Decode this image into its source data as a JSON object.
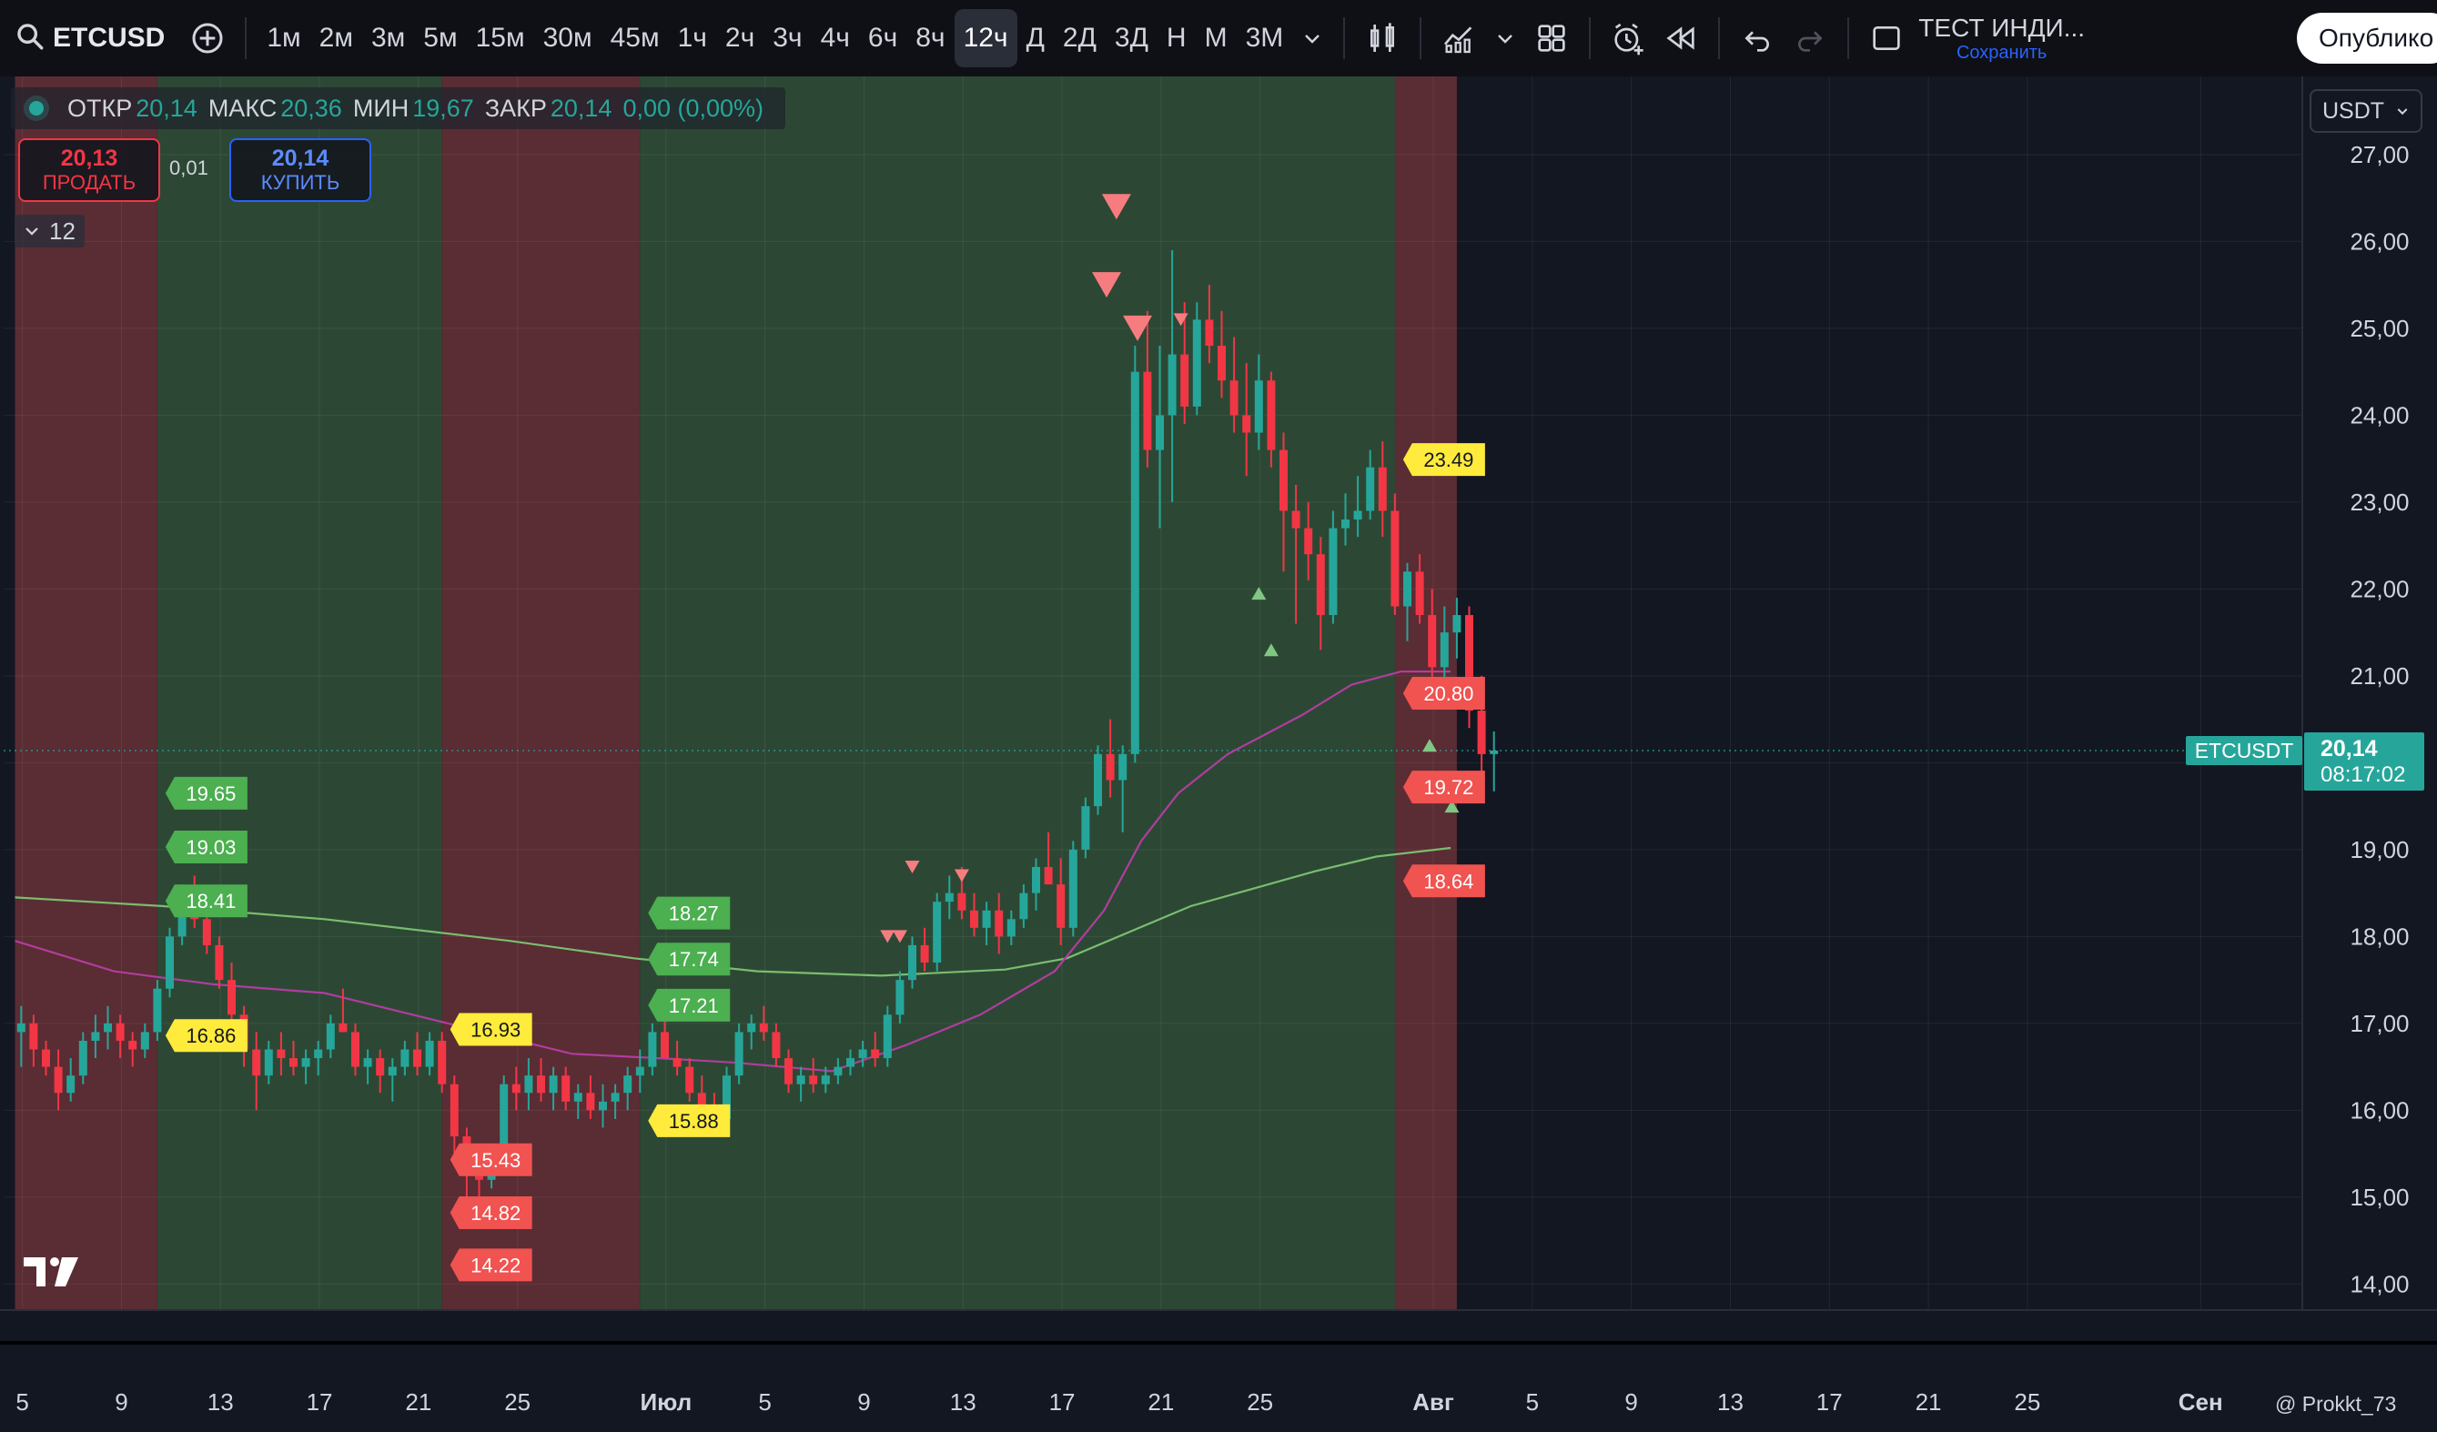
{
  "toolbar": {
    "symbol": "ETCUSD",
    "intervals": [
      "1м",
      "2м",
      "3м",
      "5м",
      "15м",
      "30м",
      "45м",
      "1ч",
      "2ч",
      "3ч",
      "4ч",
      "6ч",
      "8ч",
      "12ч",
      "Д",
      "2Д",
      "3Д",
      "Н",
      "М",
      "3М"
    ],
    "active_interval": "12ч",
    "layout_name": "ТЕСТ ИНДИ...",
    "save_label": "Сохранить",
    "publish_label": "Опублико"
  },
  "legend": {
    "open_label": "ОТКР",
    "open_value": "20,14",
    "high_label": "МАКС",
    "high_value": "20,36",
    "low_label": "МИН",
    "low_value": "19,67",
    "close_label": "ЗАКР",
    "close_value": "20,14",
    "change_value": "0,00 (0,00%)"
  },
  "trade": {
    "sell_price": "20,13",
    "sell_label": "ПРОДАТЬ",
    "spread": "0,01",
    "buy_price": "20,14",
    "buy_label": "КУПИТЬ"
  },
  "indicators_count": "12",
  "currency": "USDT",
  "attribution": "@ Prokkt_73",
  "colors": {
    "background": "#131722",
    "up": "#26a69a",
    "down": "#f23645",
    "zone_green": "#2c4834",
    "zone_red": "#5a2c33",
    "ma_long": "#7bbd6f",
    "ma_short": "#b03d9f",
    "label_green": "#4caf50",
    "label_red": "#f05350",
    "label_yellow": "#ffeb3b"
  },
  "chart_data": {
    "type": "candlestick",
    "symbol": "ETCUSDT",
    "last_price": "20,14",
    "countdown": "08:17:02",
    "ylim": [
      13.7,
      27.9
    ],
    "y_ticks": [
      "14,00",
      "15,00",
      "16,00",
      "17,00",
      "18,00",
      "19,00",
      "20,00",
      "21,00",
      "22,00",
      "23,00",
      "24,00",
      "25,00",
      "26,00",
      "27,00"
    ],
    "x_ticks": [
      {
        "label": "5",
        "t": 0.6
      },
      {
        "label": "9",
        "t": 8.6
      },
      {
        "label": "13",
        "t": 16.6
      },
      {
        "label": "17",
        "t": 24.6
      },
      {
        "label": "21",
        "t": 32.6
      },
      {
        "label": "25",
        "t": 40.6
      },
      {
        "label": "Июл",
        "t": 52.6
      },
      {
        "label": "5",
        "t": 60.6
      },
      {
        "label": "9",
        "t": 68.6
      },
      {
        "label": "13",
        "t": 76.6
      },
      {
        "label": "17",
        "t": 84.6
      },
      {
        "label": "21",
        "t": 92.6
      },
      {
        "label": "25",
        "t": 100.6
      },
      {
        "label": "Авг",
        "t": 114.6
      },
      {
        "label": "5",
        "t": 122.6
      },
      {
        "label": "9",
        "t": 130.6
      },
      {
        "label": "13",
        "t": 138.6
      },
      {
        "label": "17",
        "t": 146.6
      },
      {
        "label": "21",
        "t": 154.6
      },
      {
        "label": "25",
        "t": 162.6
      },
      {
        "label": "Сен",
        "t": 176.6
      }
    ],
    "zones": [
      {
        "from": 0,
        "to": 11.5,
        "color": "red"
      },
      {
        "from": 11.5,
        "to": 34.5,
        "color": "green"
      },
      {
        "from": 34.5,
        "to": 50.5,
        "color": "red"
      },
      {
        "from": 50.5,
        "to": 111.5,
        "color": "green"
      },
      {
        "from": 111.5,
        "to": 116.5,
        "color": "red"
      }
    ],
    "candles": [
      [
        16.9,
        17.2,
        16.5,
        17.0
      ],
      [
        17.0,
        17.1,
        16.5,
        16.7
      ],
      [
        16.7,
        16.8,
        16.4,
        16.5
      ],
      [
        16.5,
        16.7,
        16.0,
        16.2
      ],
      [
        16.2,
        16.6,
        16.1,
        16.4
      ],
      [
        16.4,
        16.9,
        16.3,
        16.8
      ],
      [
        16.8,
        17.1,
        16.6,
        16.9
      ],
      [
        16.9,
        17.2,
        16.7,
        17.0
      ],
      [
        17.0,
        17.1,
        16.6,
        16.8
      ],
      [
        16.8,
        16.9,
        16.5,
        16.7
      ],
      [
        16.7,
        17.0,
        16.6,
        16.9
      ],
      [
        16.9,
        17.5,
        16.8,
        17.4
      ],
      [
        17.4,
        18.1,
        17.3,
        18.0
      ],
      [
        18.0,
        18.6,
        17.9,
        18.4
      ],
      [
        18.4,
        18.7,
        18.1,
        18.2
      ],
      [
        18.2,
        18.5,
        17.8,
        17.9
      ],
      [
        17.9,
        18.0,
        17.4,
        17.5
      ],
      [
        17.5,
        17.7,
        16.9,
        17.1
      ],
      [
        17.1,
        17.2,
        16.5,
        16.7
      ],
      [
        16.7,
        16.9,
        16.0,
        16.4
      ],
      [
        16.4,
        16.8,
        16.3,
        16.7
      ],
      [
        16.7,
        16.9,
        16.4,
        16.6
      ],
      [
        16.6,
        16.8,
        16.4,
        16.5
      ],
      [
        16.5,
        16.7,
        16.3,
        16.6
      ],
      [
        16.6,
        16.8,
        16.4,
        16.7
      ],
      [
        16.7,
        17.1,
        16.6,
        17.0
      ],
      [
        17.0,
        17.4,
        16.9,
        16.9
      ],
      [
        16.9,
        17.0,
        16.4,
        16.5
      ],
      [
        16.5,
        16.7,
        16.3,
        16.6
      ],
      [
        16.6,
        16.7,
        16.2,
        16.4
      ],
      [
        16.4,
        16.6,
        16.1,
        16.5
      ],
      [
        16.5,
        16.8,
        16.4,
        16.7
      ],
      [
        16.7,
        16.9,
        16.4,
        16.5
      ],
      [
        16.5,
        16.9,
        16.4,
        16.8
      ],
      [
        16.8,
        16.9,
        16.2,
        16.3
      ],
      [
        16.3,
        16.4,
        15.4,
        15.7
      ],
      [
        15.7,
        15.8,
        15.0,
        15.3
      ],
      [
        15.3,
        15.5,
        14.9,
        15.2
      ],
      [
        15.2,
        15.6,
        15.1,
        15.5
      ],
      [
        15.5,
        16.4,
        15.4,
        16.3
      ],
      [
        16.3,
        16.5,
        16.0,
        16.2
      ],
      [
        16.2,
        16.6,
        16.0,
        16.4
      ],
      [
        16.4,
        16.6,
        16.1,
        16.2
      ],
      [
        16.2,
        16.5,
        16.0,
        16.4
      ],
      [
        16.4,
        16.5,
        16.0,
        16.1
      ],
      [
        16.1,
        16.3,
        15.9,
        16.2
      ],
      [
        16.2,
        16.4,
        15.9,
        16.0
      ],
      [
        16.0,
        16.3,
        15.8,
        16.1
      ],
      [
        16.1,
        16.3,
        15.9,
        16.2
      ],
      [
        16.2,
        16.5,
        16.0,
        16.4
      ],
      [
        16.4,
        16.7,
        16.2,
        16.5
      ],
      [
        16.5,
        17.0,
        16.4,
        16.9
      ],
      [
        16.9,
        17.1,
        16.6,
        16.6
      ],
      [
        16.6,
        16.8,
        16.4,
        16.5
      ],
      [
        16.5,
        16.6,
        16.1,
        16.2
      ],
      [
        16.2,
        16.4,
        15.9,
        16.0
      ],
      [
        16.0,
        16.2,
        15.8,
        15.9
      ],
      [
        15.9,
        16.5,
        15.8,
        16.4
      ],
      [
        16.4,
        17.0,
        16.3,
        16.9
      ],
      [
        16.9,
        17.1,
        16.7,
        17.0
      ],
      [
        17.0,
        17.2,
        16.8,
        16.9
      ],
      [
        16.9,
        17.0,
        16.5,
        16.6
      ],
      [
        16.6,
        16.7,
        16.2,
        16.3
      ],
      [
        16.3,
        16.5,
        16.1,
        16.4
      ],
      [
        16.4,
        16.6,
        16.2,
        16.3
      ],
      [
        16.3,
        16.5,
        16.2,
        16.4
      ],
      [
        16.4,
        16.6,
        16.3,
        16.5
      ],
      [
        16.5,
        16.7,
        16.4,
        16.6
      ],
      [
        16.6,
        16.8,
        16.5,
        16.7
      ],
      [
        16.7,
        16.9,
        16.5,
        16.6
      ],
      [
        16.6,
        17.2,
        16.5,
        17.1
      ],
      [
        17.1,
        17.6,
        17.0,
        17.5
      ],
      [
        17.5,
        18.0,
        17.4,
        17.9
      ],
      [
        17.9,
        18.1,
        17.6,
        17.7
      ],
      [
        17.7,
        18.5,
        17.6,
        18.4
      ],
      [
        18.4,
        18.7,
        18.2,
        18.5
      ],
      [
        18.5,
        18.8,
        18.2,
        18.3
      ],
      [
        18.3,
        18.5,
        18.0,
        18.1
      ],
      [
        18.1,
        18.4,
        17.9,
        18.3
      ],
      [
        18.3,
        18.5,
        17.8,
        18.0
      ],
      [
        18.0,
        18.3,
        17.9,
        18.2
      ],
      [
        18.2,
        18.6,
        18.1,
        18.5
      ],
      [
        18.5,
        18.9,
        18.3,
        18.8
      ],
      [
        18.8,
        19.2,
        18.6,
        18.6
      ],
      [
        18.6,
        18.9,
        17.9,
        18.1
      ],
      [
        18.1,
        19.1,
        18.0,
        19.0
      ],
      [
        19.0,
        19.6,
        18.9,
        19.5
      ],
      [
        19.5,
        20.2,
        19.4,
        20.1
      ],
      [
        20.1,
        20.5,
        19.6,
        19.8
      ],
      [
        19.8,
        20.2,
        19.2,
        20.1
      ],
      [
        20.1,
        24.8,
        20.0,
        24.5
      ],
      [
        24.5,
        25.2,
        23.4,
        23.6
      ],
      [
        23.6,
        24.8,
        22.7,
        24.0
      ],
      [
        24.0,
        25.9,
        23.0,
        24.7
      ],
      [
        24.7,
        25.3,
        23.9,
        24.1
      ],
      [
        24.1,
        25.3,
        24.0,
        25.1
      ],
      [
        25.1,
        25.5,
        24.6,
        24.8
      ],
      [
        24.8,
        25.2,
        24.2,
        24.4
      ],
      [
        24.4,
        24.9,
        23.8,
        24.0
      ],
      [
        24.0,
        24.6,
        23.3,
        23.8
      ],
      [
        23.8,
        24.7,
        23.6,
        24.4
      ],
      [
        24.4,
        24.5,
        23.4,
        23.6
      ],
      [
        23.6,
        23.8,
        22.2,
        22.9
      ],
      [
        22.9,
        23.2,
        21.6,
        22.7
      ],
      [
        22.7,
        23.0,
        22.1,
        22.4
      ],
      [
        22.4,
        22.6,
        21.3,
        21.7
      ],
      [
        21.7,
        22.9,
        21.6,
        22.7
      ],
      [
        22.7,
        23.1,
        22.5,
        22.8
      ],
      [
        22.8,
        23.3,
        22.6,
        22.9
      ],
      [
        22.9,
        23.6,
        22.8,
        23.4
      ],
      [
        23.4,
        23.7,
        22.6,
        22.9
      ],
      [
        22.9,
        23.1,
        21.7,
        21.8
      ],
      [
        21.8,
        22.3,
        21.4,
        22.2
      ],
      [
        22.2,
        22.4,
        21.6,
        21.7
      ],
      [
        21.7,
        22.0,
        20.8,
        21.1
      ],
      [
        21.1,
        21.8,
        20.7,
        21.5
      ],
      [
        21.5,
        21.9,
        21.2,
        21.7
      ],
      [
        21.7,
        21.8,
        20.4,
        20.6
      ],
      [
        20.6,
        21.0,
        19.9,
        20.1
      ],
      [
        20.1,
        20.36,
        19.67,
        20.14
      ]
    ],
    "ma_long": [
      [
        0,
        18.45
      ],
      [
        12,
        18.35
      ],
      [
        25,
        18.2
      ],
      [
        40,
        17.95
      ],
      [
        50,
        17.75
      ],
      [
        60,
        17.6
      ],
      [
        70,
        17.55
      ],
      [
        80,
        17.62
      ],
      [
        85,
        17.75
      ],
      [
        90,
        18.05
      ],
      [
        95,
        18.35
      ],
      [
        100,
        18.55
      ],
      [
        105,
        18.75
      ],
      [
        110,
        18.92
      ],
      [
        116,
        19.02
      ]
    ],
    "ma_short": [
      [
        0,
        17.95
      ],
      [
        8,
        17.6
      ],
      [
        16,
        17.45
      ],
      [
        25,
        17.35
      ],
      [
        35,
        17.0
      ],
      [
        45,
        16.65
      ],
      [
        52,
        16.6
      ],
      [
        58,
        16.55
      ],
      [
        66,
        16.45
      ],
      [
        72,
        16.75
      ],
      [
        78,
        17.1
      ],
      [
        84,
        17.6
      ],
      [
        88,
        18.3
      ],
      [
        91,
        19.1
      ],
      [
        94,
        19.65
      ],
      [
        98,
        20.1
      ],
      [
        104,
        20.55
      ],
      [
        108,
        20.9
      ],
      [
        112,
        21.05
      ],
      [
        116,
        21.05
      ]
    ],
    "level_labels": [
      {
        "text": "19.65",
        "t": 12.6,
        "y": 19.65,
        "color": "green"
      },
      {
        "text": "19.03",
        "t": 12.6,
        "y": 19.03,
        "color": "green"
      },
      {
        "text": "18.41",
        "t": 12.6,
        "y": 18.41,
        "color": "green"
      },
      {
        "text": "16.86",
        "t": 12.6,
        "y": 16.86,
        "color": "yellow"
      },
      {
        "text": "16.93",
        "t": 35.6,
        "y": 16.93,
        "color": "yellow"
      },
      {
        "text": "15.43",
        "t": 35.6,
        "y": 15.43,
        "color": "red"
      },
      {
        "text": "14.82",
        "t": 35.6,
        "y": 14.82,
        "color": "red"
      },
      {
        "text": "14.22",
        "t": 35.6,
        "y": 14.22,
        "color": "red"
      },
      {
        "text": "18.27",
        "t": 51.6,
        "y": 18.27,
        "color": "green"
      },
      {
        "text": "17.74",
        "t": 51.6,
        "y": 17.74,
        "color": "green"
      },
      {
        "text": "17.21",
        "t": 51.6,
        "y": 17.21,
        "color": "green"
      },
      {
        "text": "15.88",
        "t": 51.6,
        "y": 15.88,
        "color": "yellow"
      },
      {
        "text": "23.49",
        "t": 112.6,
        "y": 23.49,
        "color": "yellow"
      },
      {
        "text": "20.80",
        "t": 112.6,
        "y": 20.8,
        "color": "red"
      },
      {
        "text": "19.72",
        "t": 112.6,
        "y": 19.72,
        "color": "red"
      },
      {
        "text": "18.64",
        "t": 112.6,
        "y": 18.64,
        "color": "red"
      }
    ],
    "signals": [
      {
        "t": 89,
        "y": 26.4,
        "dir": "down",
        "size": "big"
      },
      {
        "t": 88.2,
        "y": 25.5,
        "dir": "down",
        "size": "big"
      },
      {
        "t": 90.7,
        "y": 25.0,
        "dir": "down",
        "size": "big"
      },
      {
        "t": 94.2,
        "y": 25.1,
        "dir": "down",
        "size": "small"
      },
      {
        "t": 72.5,
        "y": 18.8,
        "dir": "down",
        "size": "small"
      },
      {
        "t": 76.5,
        "y": 18.7,
        "dir": "down",
        "size": "small"
      },
      {
        "t": 70.5,
        "y": 18.0,
        "dir": "down",
        "size": "small"
      },
      {
        "t": 71.5,
        "y": 18.0,
        "dir": "down",
        "size": "small"
      },
      {
        "t": 100.5,
        "y": 21.95,
        "dir": "up",
        "size": "small"
      },
      {
        "t": 101.5,
        "y": 21.3,
        "dir": "up",
        "size": "small"
      },
      {
        "t": 114.3,
        "y": 20.2,
        "dir": "up",
        "size": "small"
      },
      {
        "t": 116.1,
        "y": 19.5,
        "dir": "up",
        "size": "small"
      }
    ]
  }
}
